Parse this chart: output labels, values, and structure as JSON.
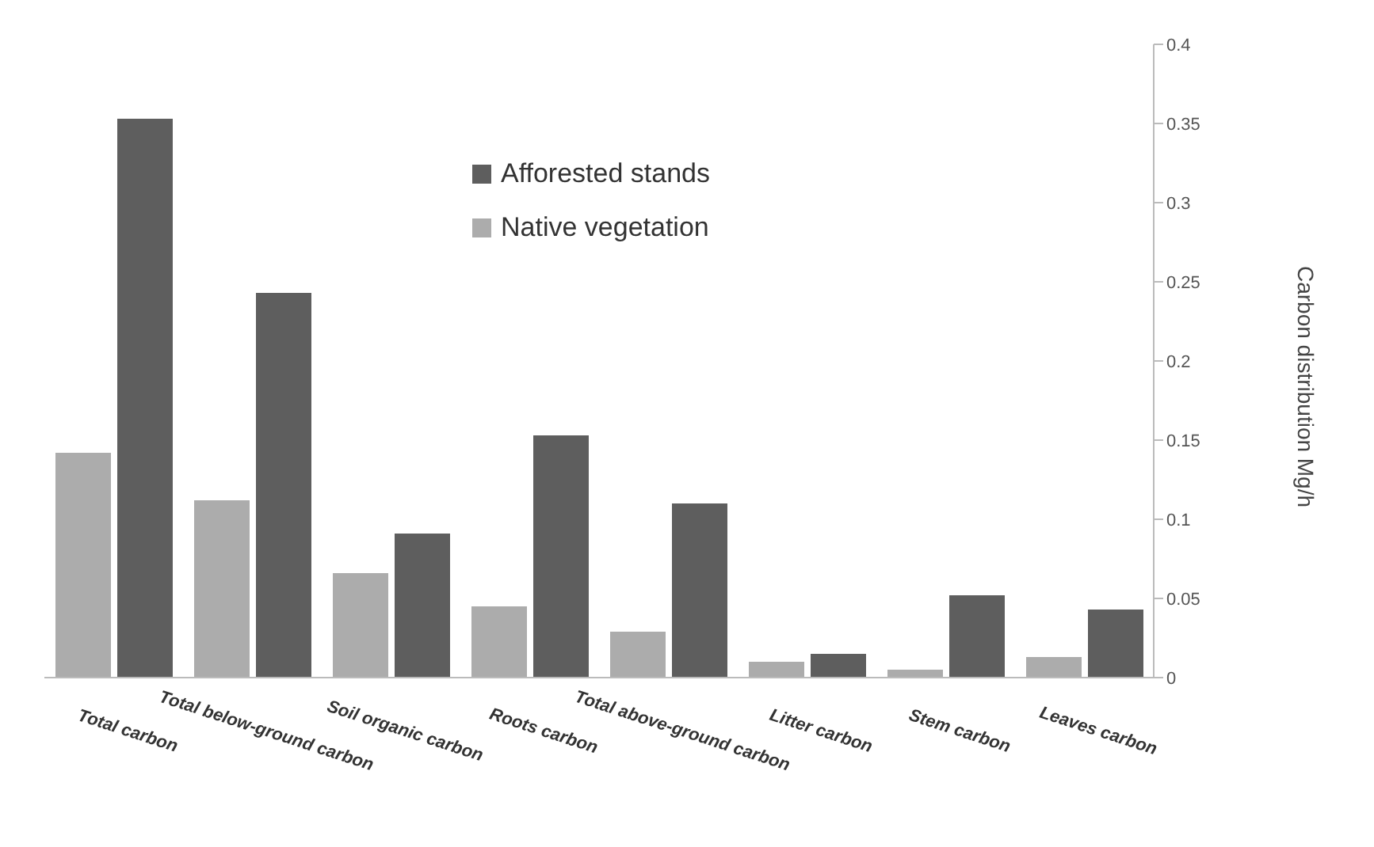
{
  "chart_data": {
    "type": "bar",
    "ylabel": "Carbon distribution Mg/h",
    "categories": [
      "Total carbon",
      "Total below-ground carbon",
      "Soil organic carbon",
      "Roots carbon",
      "Total above-ground carbon",
      "Litter carbon",
      "Stem carbon",
      "Leaves carbon"
    ],
    "series": [
      {
        "name": "Native vegetation",
        "color": "#acacac",
        "values": [
          0.142,
          0.112,
          0.066,
          0.045,
          0.029,
          0.01,
          0.005,
          0.013
        ]
      },
      {
        "name": "Afforested stands",
        "color": "#5e5e5e",
        "values": [
          0.353,
          0.243,
          0.091,
          0.153,
          0.11,
          0.015,
          0.052,
          0.043
        ]
      }
    ],
    "ylim": [
      0,
      0.4
    ],
    "yticks": [
      0,
      0.05,
      0.1,
      0.15,
      0.2,
      0.25,
      0.3,
      0.35,
      0.4
    ],
    "grid": false,
    "legend": "top"
  }
}
